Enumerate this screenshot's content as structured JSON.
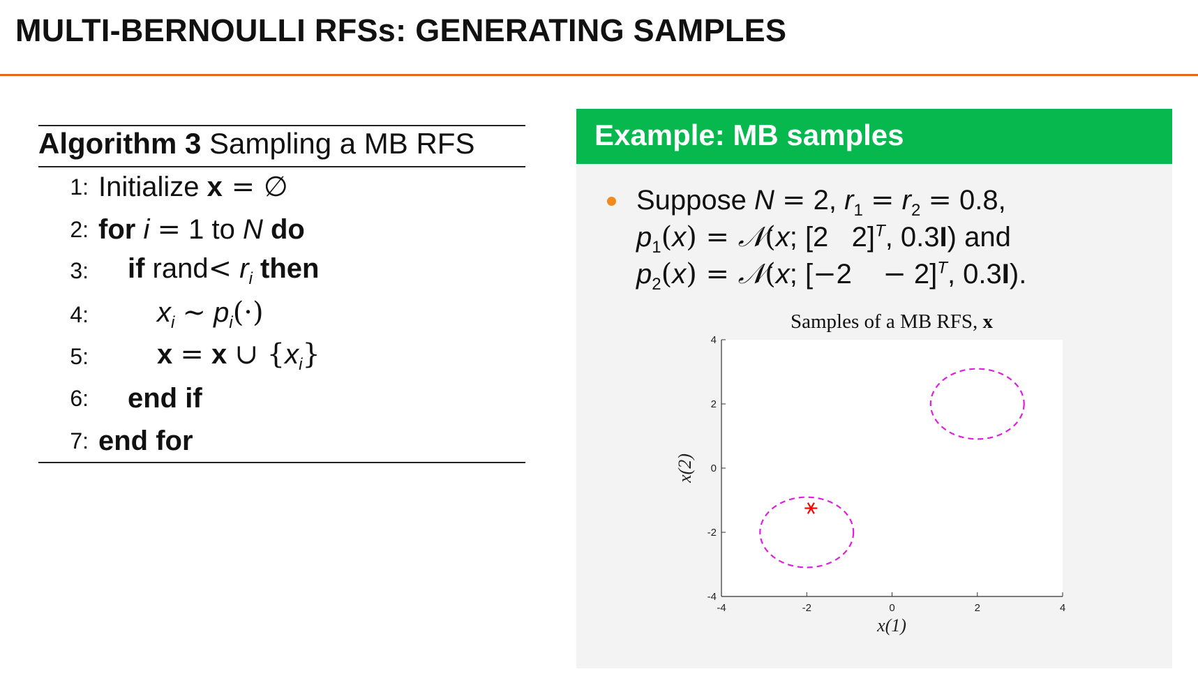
{
  "slide": {
    "title": "MULTI-BERNOULLI RFSs: GENERATING SAMPLES"
  },
  "algorithm": {
    "label": "Algorithm 3",
    "caption": "Sampling a MB RFS",
    "lines": [
      {
        "num": "1:",
        "text": "Initialize x = ∅"
      },
      {
        "num": "2:",
        "text": "for i = 1 to N do"
      },
      {
        "num": "3:",
        "text": "if rand< r_i then"
      },
      {
        "num": "4:",
        "text": "x_i ~ p_i(·)"
      },
      {
        "num": "5:",
        "text": "x = x ∪ {x_i}"
      },
      {
        "num": "6:",
        "text": "end if"
      },
      {
        "num": "7:",
        "text": "end for"
      }
    ]
  },
  "example": {
    "title": "Example: MB samples",
    "bullet_lines": [
      "Suppose N = 2, r1 = r2 = 0.8,",
      "p1(x) = N(x; [2   2]ᵀ, 0.3I) and",
      "p2(x) = N(x; [−2   −2]ᵀ, 0.3I)."
    ]
  },
  "colors": {
    "accent_rule": "#e8671c",
    "panel_header": "#06b84e",
    "bullet": "#f08a1c",
    "ellipse": "#e01ee0",
    "sample": "#ff0000"
  },
  "chart_data": {
    "type": "scatter",
    "title": "Samples of a MB RFS, x",
    "xlabel": "x(1)",
    "ylabel": "x(2)",
    "xlim": [
      -4,
      4
    ],
    "ylim": [
      -4,
      4
    ],
    "xticks": [
      -4,
      -2,
      0,
      2,
      4
    ],
    "yticks": [
      -4,
      -2,
      0,
      2,
      4
    ],
    "grid": false,
    "ellipses": [
      {
        "center": [
          2,
          2
        ],
        "radius": 1.095,
        "style": "dashed",
        "color": "#e01ee0"
      },
      {
        "center": [
          -2,
          -2
        ],
        "radius": 1.095,
        "style": "dashed",
        "color": "#e01ee0"
      }
    ],
    "points": [
      {
        "x": -1.9,
        "y": -1.25,
        "marker": "asterisk",
        "color": "#ff0000"
      }
    ]
  }
}
